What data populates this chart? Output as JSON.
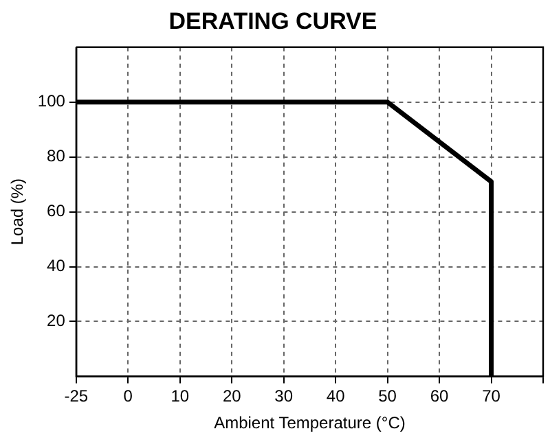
{
  "chart_data": {
    "type": "line",
    "title": "DERATING CURVE",
    "xlabel": "Ambient Temperature (°C)",
    "ylabel": "Load (%)",
    "categories": [
      "-25",
      "0",
      "10",
      "20",
      "30",
      "40",
      "50",
      "60",
      "70",
      null
    ],
    "series": [
      {
        "color": "#000000",
        "x": [
          "-25",
          "50",
          "70",
          "70"
        ],
        "values": [
          100,
          100,
          71,
          0
        ]
      }
    ],
    "ylim": [
      0,
      120
    ],
    "yticks": [
      20,
      40,
      60,
      80,
      100
    ],
    "grid": true,
    "legend": false,
    "marker": "none",
    "line_style": "solid"
  }
}
